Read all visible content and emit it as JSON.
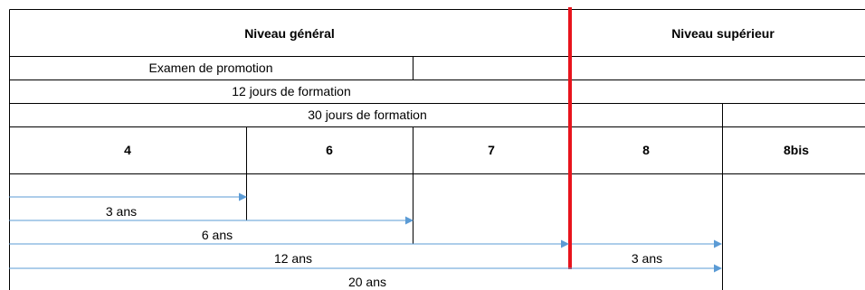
{
  "header": {
    "general_level": "Niveau général",
    "higher_level": "Niveau supérieur"
  },
  "rows": {
    "promotion_exam": "Examen de promotion",
    "training_12_days": "12 jours de formation",
    "training_30_days": "30 jours de formation"
  },
  "grades": [
    "4",
    "6",
    "7",
    "8",
    "8bis"
  ],
  "durations": [
    "3 ans",
    "6 ans",
    "12 ans",
    "3 ans",
    "20 ans"
  ],
  "colors": {
    "lines": "#000000",
    "separator": "#e8141c",
    "arrows": "#5b9bd5"
  }
}
